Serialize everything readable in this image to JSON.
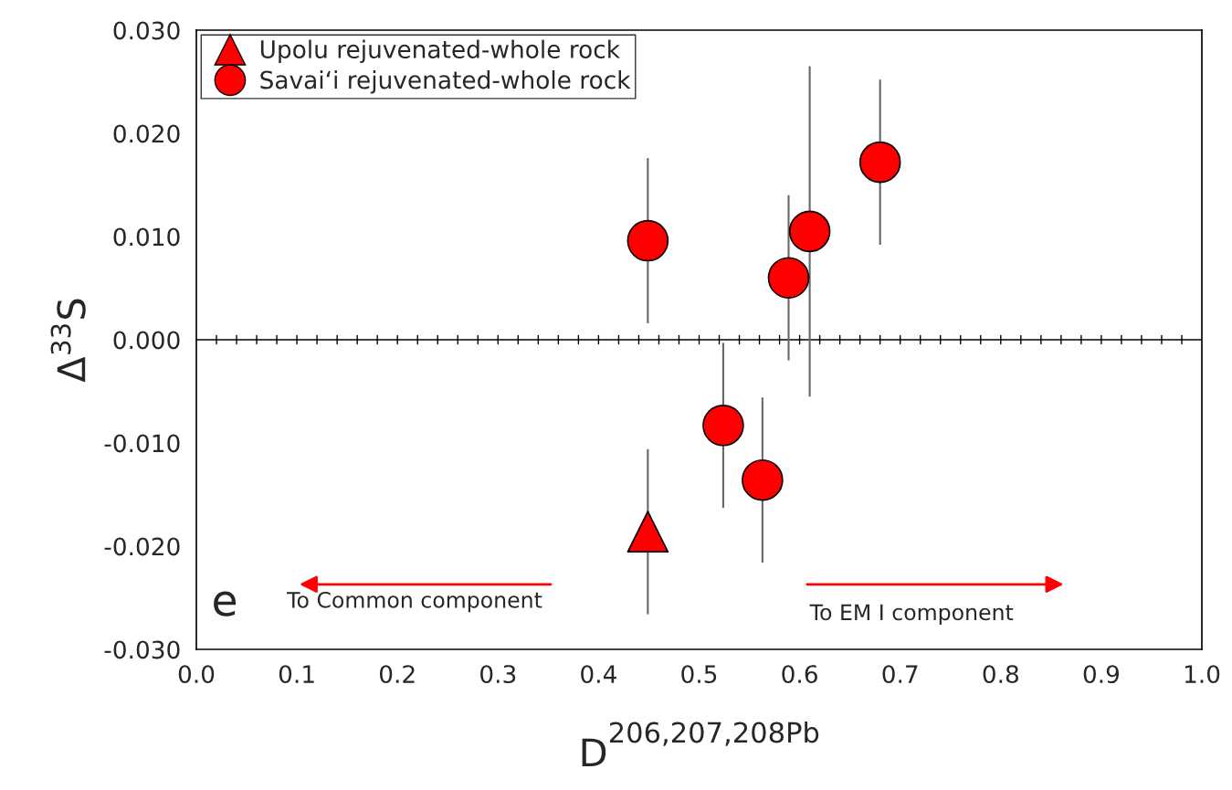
{
  "chart_data": {
    "type": "scatter",
    "xlabel": "D$^{206,207,208Pb}$",
    "ylabel": "Δ$^{33}$S",
    "xlim": [
      0.0,
      1.0
    ],
    "xticks": [
      {
        "value": 0.0,
        "label": "0.0"
      },
      {
        "value": 0.1,
        "label": "0.1"
      },
      {
        "value": 0.2,
        "label": "0.2"
      },
      {
        "value": 0.3,
        "label": "0.3"
      },
      {
        "value": 0.4,
        "label": "0.4"
      },
      {
        "value": 0.5,
        "label": "0.5"
      },
      {
        "value": 0.6,
        "label": "0.6"
      },
      {
        "value": 0.7,
        "label": "0.7"
      },
      {
        "value": 0.8,
        "label": "0.8"
      },
      {
        "value": 0.9,
        "label": "0.9"
      },
      {
        "value": 1.0,
        "label": "1.0"
      }
    ],
    "ylim": [
      -0.03,
      0.03
    ],
    "yticks": [
      {
        "value": -0.03,
        "label": "-0.030"
      },
      {
        "value": -0.02,
        "label": "-0.020"
      },
      {
        "value": -0.01,
        "label": "-0.010"
      },
      {
        "value": 0.0,
        "label": "0.000"
      },
      {
        "value": 0.01,
        "label": "0.010"
      },
      {
        "value": 0.02,
        "label": "0.020"
      },
      {
        "value": 0.03,
        "label": "0.030"
      }
    ],
    "grid": false,
    "legend": "top left",
    "ref_lines": [
      {
        "axis": "y",
        "value": 0.0,
        "color": "#000000"
      }
    ],
    "annotations": [
      "e",
      "To Common component",
      "To EM I component"
    ],
    "series": [
      {
        "name": "Upolu rejuvenated-whole rock",
        "color": "#ff0000",
        "marker": "triangle",
        "x": [
          0.449
        ],
        "values": [
          -0.0186
        ],
        "errors": [
          0.008
        ]
      },
      {
        "name": "Savai‘i rejuvenated-whole rock",
        "color": "#ff0000",
        "marker": "circle",
        "x": [
          0.449,
          0.524,
          0.563,
          0.589,
          0.61,
          0.68
        ],
        "values": [
          0.0096,
          -0.0083,
          -0.0136,
          0.006,
          0.0105,
          0.0172
        ],
        "errors": [
          0.008,
          0.008,
          0.008,
          0.008,
          0.016,
          0.008
        ]
      }
    ]
  }
}
